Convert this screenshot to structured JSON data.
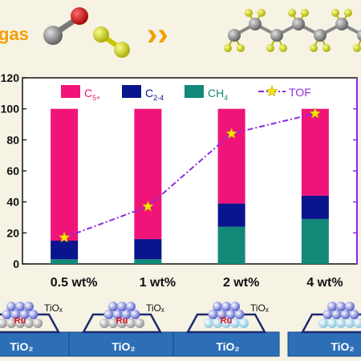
{
  "banner": {
    "left_text": "gas",
    "arrow_glyph": "››"
  },
  "chart_data": {
    "type": "bar",
    "stacked": true,
    "title": "",
    "xlabel": "",
    "ylabel": "",
    "categories": [
      "0.5 wt%",
      "1 wt%",
      "2 wt%",
      "4 wt%"
    ],
    "ylim": [
      0,
      120
    ],
    "yticks": [
      0,
      20,
      40,
      60,
      80,
      100,
      120
    ],
    "series": [
      {
        "name": "CH4",
        "legend_main": "CH",
        "legend_sub": "4",
        "color": "#13897a",
        "values": [
          3,
          3,
          24,
          29
        ]
      },
      {
        "name": "C2-4",
        "legend_main": "C",
        "legend_sub": "2-4",
        "color": "#0a148c",
        "values": [
          12,
          13,
          15,
          15
        ]
      },
      {
        "name": "C5+",
        "legend_main": "C",
        "legend_sub": "5+",
        "color": "#f0147a",
        "values": [
          85,
          84,
          61,
          56
        ]
      }
    ],
    "tof": {
      "name": "TOF",
      "color": "#8b2be2",
      "marker_color": "#f5e600",
      "y_on_left_axis": [
        17,
        37,
        84,
        97
      ]
    },
    "grid": false,
    "legend_position": "top"
  },
  "catalysts": [
    {
      "support": "TiO₂",
      "overlayer": "TiOₓ",
      "metal": "Ru"
    },
    {
      "support": "TiO₂",
      "overlayer": "TiOₓ",
      "metal": "Ru"
    },
    {
      "support": "TiO₂",
      "overlayer": "TiOₓ",
      "metal": "Ru"
    },
    {
      "support": "TiO₂",
      "overlayer": "",
      "metal": ""
    }
  ]
}
